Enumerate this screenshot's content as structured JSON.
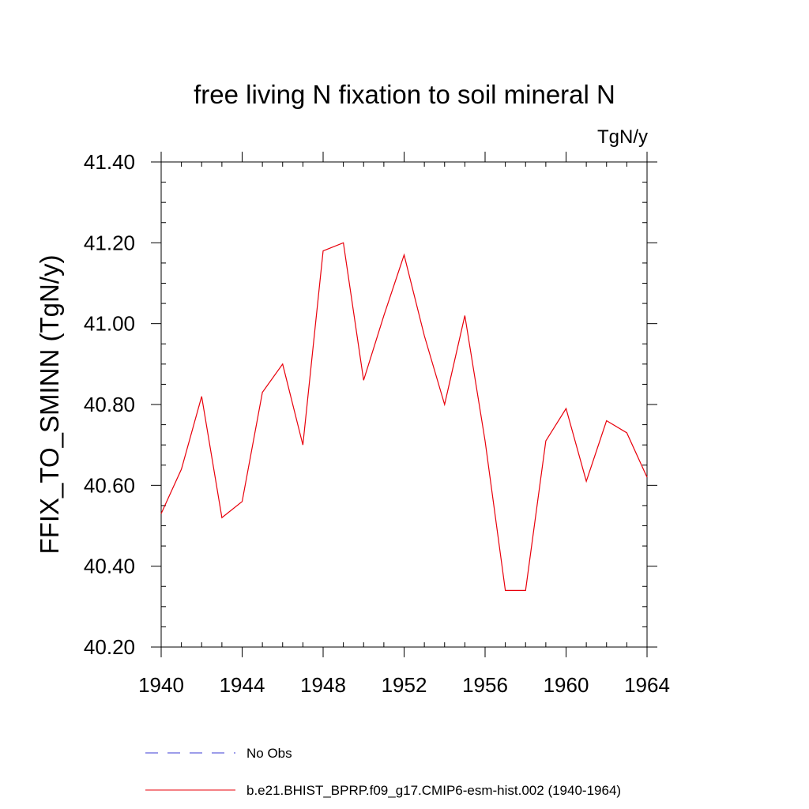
{
  "chart_data": {
    "type": "line",
    "title": "free living N fixation to soil mineral N",
    "units": "TgN/y",
    "xlabel": "",
    "ylabel": "FFIX_TO_SMINN  (TgN/y)",
    "xlim": [
      1940,
      1964
    ],
    "ylim": [
      40.2,
      41.4
    ],
    "x_ticks": [
      "1940",
      "1944",
      "1948",
      "1952",
      "1956",
      "1960",
      "1964"
    ],
    "y_ticks": [
      "40.20",
      "40.40",
      "40.60",
      "40.80",
      "41.00",
      "41.20",
      "41.40"
    ],
    "grid": false,
    "legend_position": "bottom",
    "series": [
      {
        "name": "b.e21.BHIST_BPRP.f09_g17.CMIP6-esm-hist.002 (1940-1964)",
        "color": "#e8000b",
        "style": "solid",
        "x": [
          1940,
          1941,
          1942,
          1943,
          1944,
          1945,
          1946,
          1947,
          1948,
          1949,
          1950,
          1951,
          1952,
          1953,
          1954,
          1955,
          1956,
          1957,
          1958,
          1959,
          1960,
          1961,
          1962,
          1963,
          1964
        ],
        "values": [
          40.53,
          40.64,
          40.82,
          40.52,
          40.56,
          40.83,
          40.9,
          40.7,
          41.18,
          41.2,
          40.86,
          41.02,
          41.17,
          40.97,
          40.8,
          41.02,
          40.71,
          40.34,
          40.34,
          40.71,
          40.79,
          40.61,
          40.76,
          40.73,
          40.62
        ]
      }
    ],
    "legend": [
      {
        "label": "No Obs",
        "color": "#3b3bd4",
        "style": "dashed"
      },
      {
        "label": "b.e21.BHIST_BPRP.f09_g17.CMIP6-esm-hist.002 (1940-1964)",
        "color": "#e8000b",
        "style": "solid"
      }
    ]
  }
}
